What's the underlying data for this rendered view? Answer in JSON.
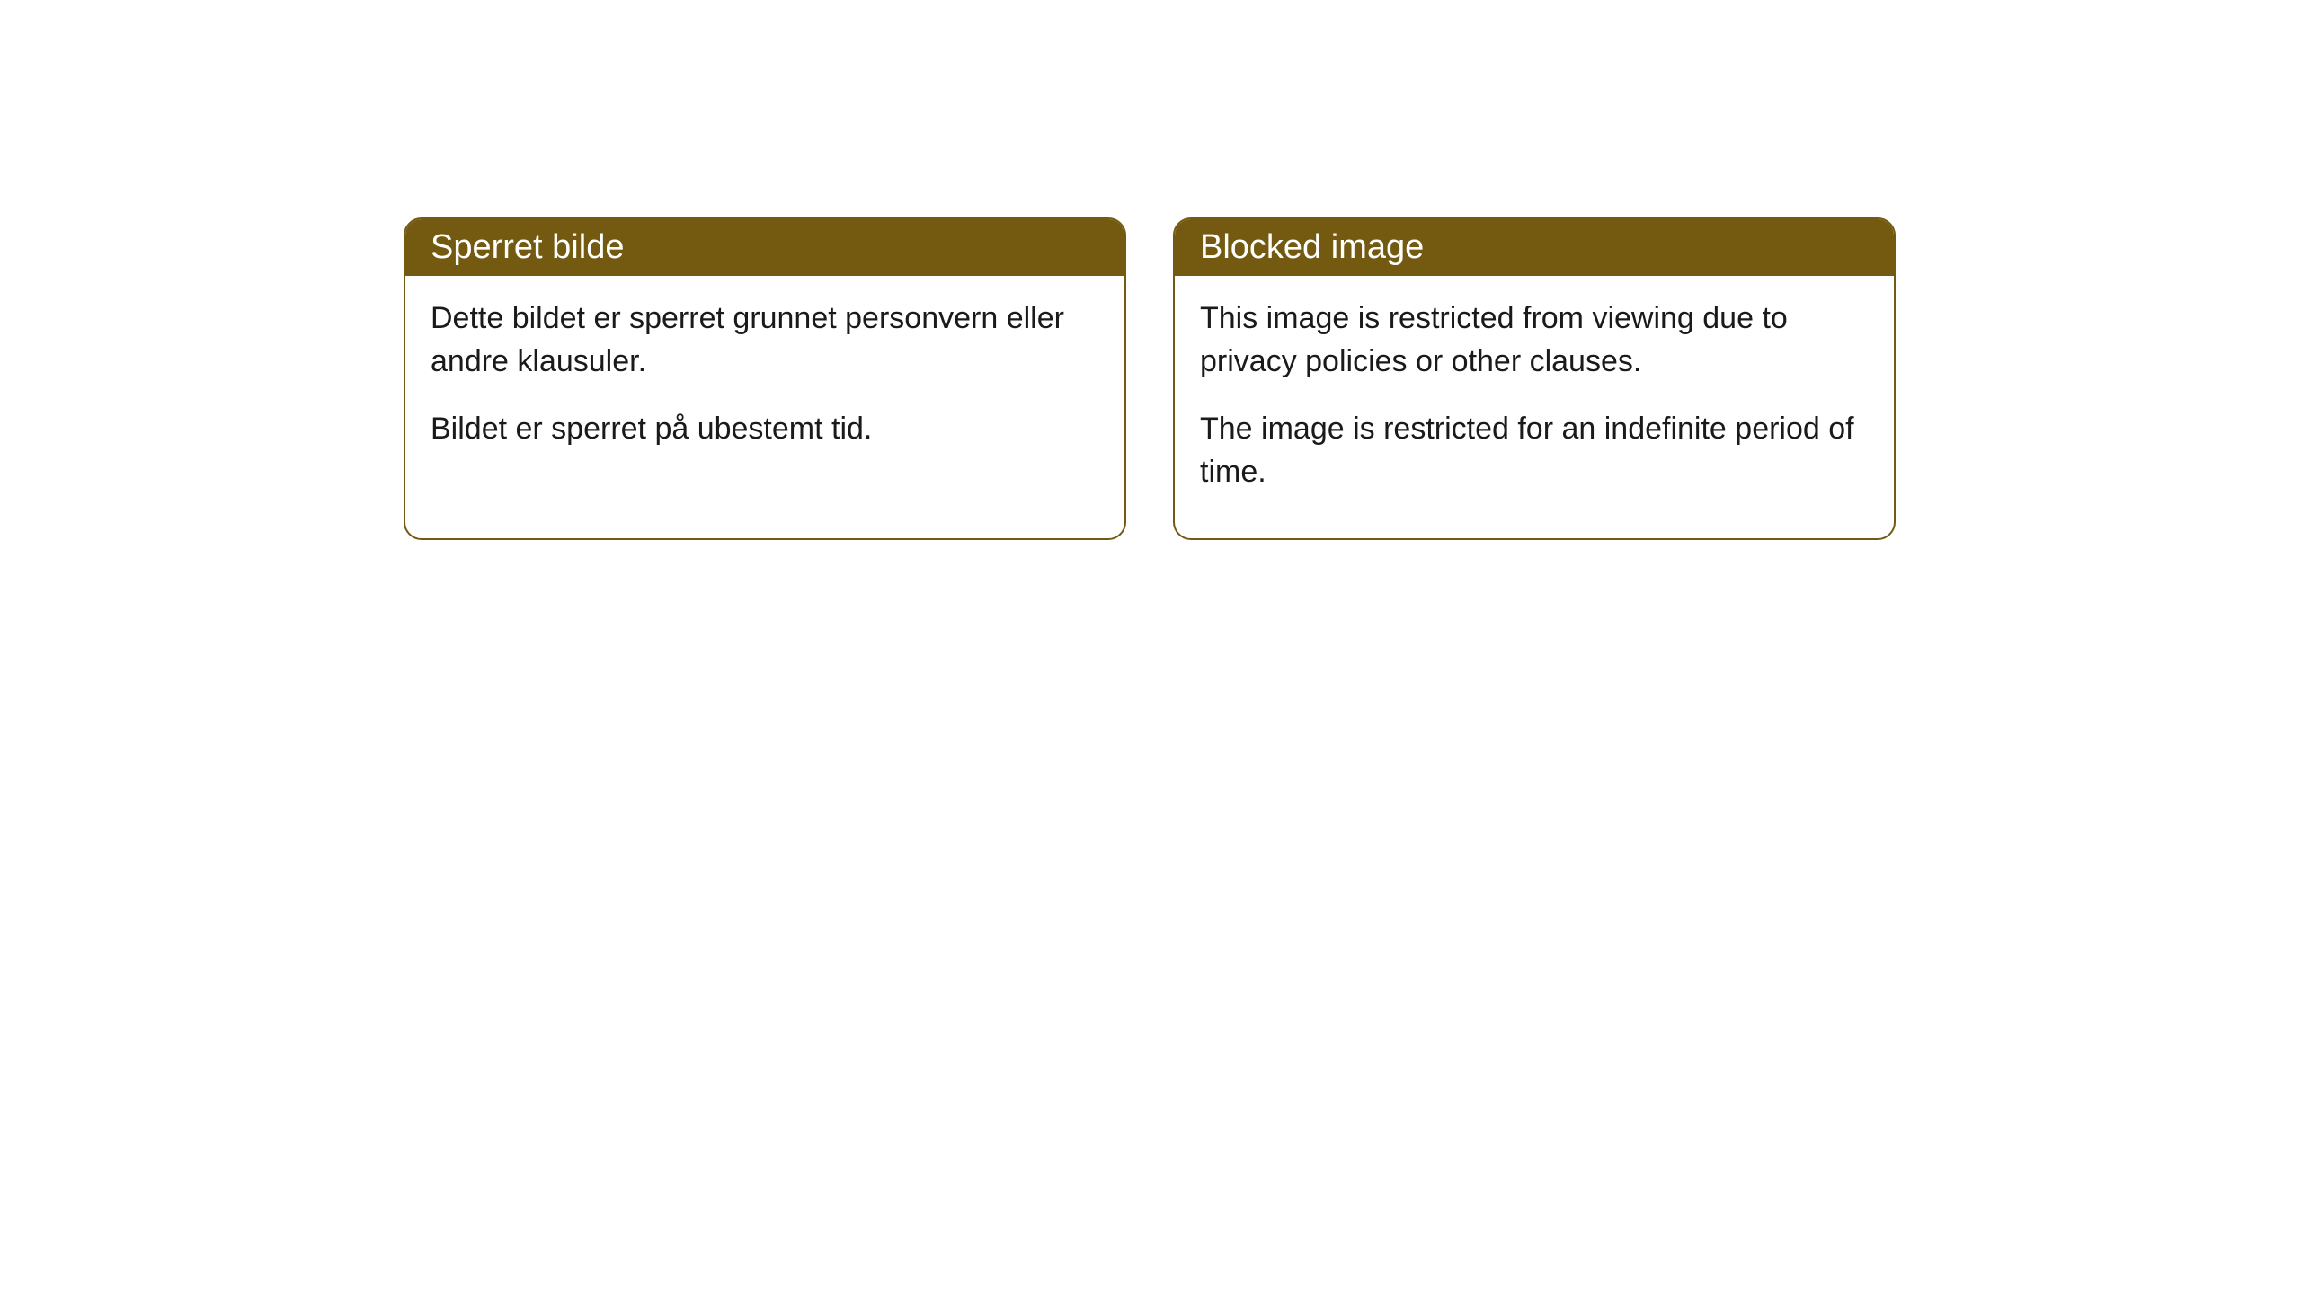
{
  "cards": [
    {
      "title": "Sperret bilde",
      "paragraph1": "Dette bildet er sperret grunnet personvern eller andre klausuler.",
      "paragraph2": "Bildet er sperret på ubestemt tid."
    },
    {
      "title": "Blocked image",
      "paragraph1": "This image is restricted from viewing due to privacy policies or other clauses.",
      "paragraph2": "The image is restricted for an indefinite period of time."
    }
  ],
  "style": {
    "header_background": "#735a10",
    "header_text_color": "#ffffff",
    "border_color": "#735a10",
    "body_background": "#ffffff",
    "body_text_color": "#1a1a1a",
    "border_radius": "20px",
    "header_fontsize": 38,
    "body_fontsize": 34
  }
}
